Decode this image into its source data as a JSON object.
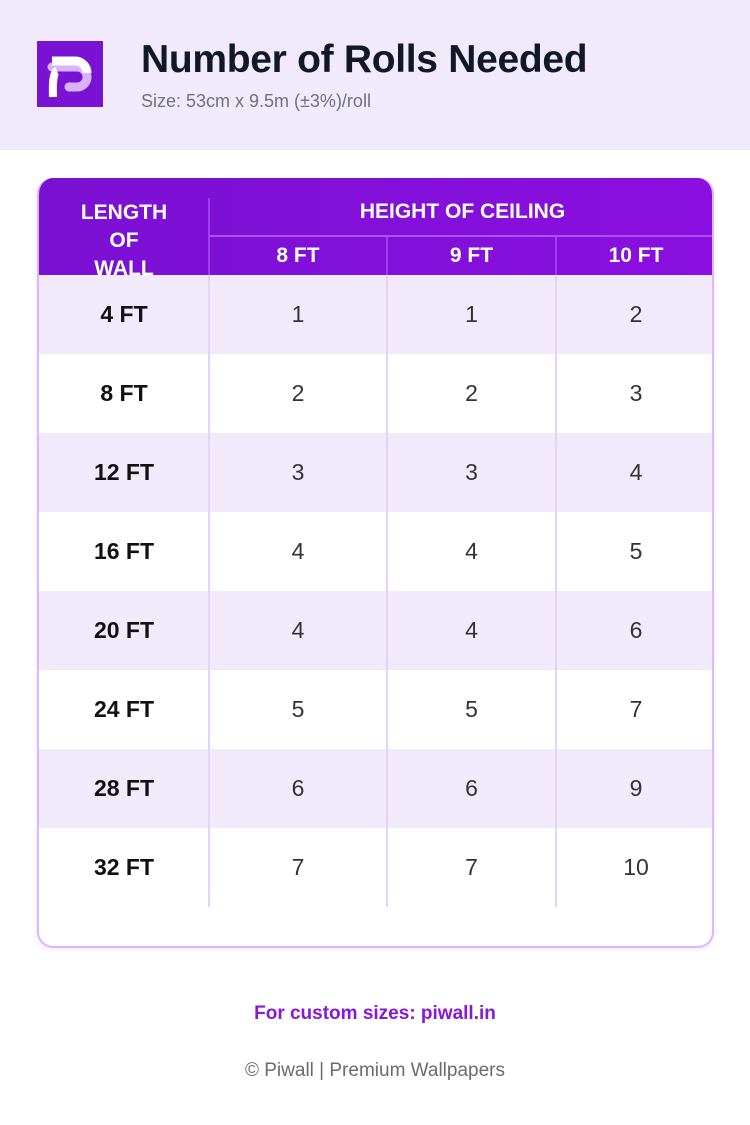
{
  "header": {
    "title": "Number of Rolls Needed",
    "subtitle": "Size: 53cm x 9.5m (±3%)/roll",
    "logo_icon": "piwall-p-logo"
  },
  "table": {
    "row_header": "LENGTH OF WALL",
    "group_header": "HEIGHT OF CEILING",
    "columns": [
      "8 FT",
      "9 FT",
      "10 FT"
    ],
    "rows": [
      {
        "length": "4 FT",
        "values": [
          "1",
          "1",
          "2"
        ]
      },
      {
        "length": "8 FT",
        "values": [
          "2",
          "2",
          "3"
        ]
      },
      {
        "length": "12 FT",
        "values": [
          "3",
          "3",
          "4"
        ]
      },
      {
        "length": "16 FT",
        "values": [
          "4",
          "4",
          "5"
        ]
      },
      {
        "length": "20 FT",
        "values": [
          "4",
          "4",
          "6"
        ]
      },
      {
        "length": "24 FT",
        "values": [
          "5",
          "5",
          "7"
        ]
      },
      {
        "length": "28 FT",
        "values": [
          "6",
          "6",
          "9"
        ]
      },
      {
        "length": "32 FT",
        "values": [
          "7",
          "7",
          "10"
        ]
      }
    ]
  },
  "footer": {
    "custom_link": "For custom sizes: piwall.in",
    "copyright": "© Piwall | Premium Wallpapers"
  },
  "colors": {
    "accent": "#7a12d4",
    "band": "#f1eafb",
    "border": "#d9b8fb"
  }
}
